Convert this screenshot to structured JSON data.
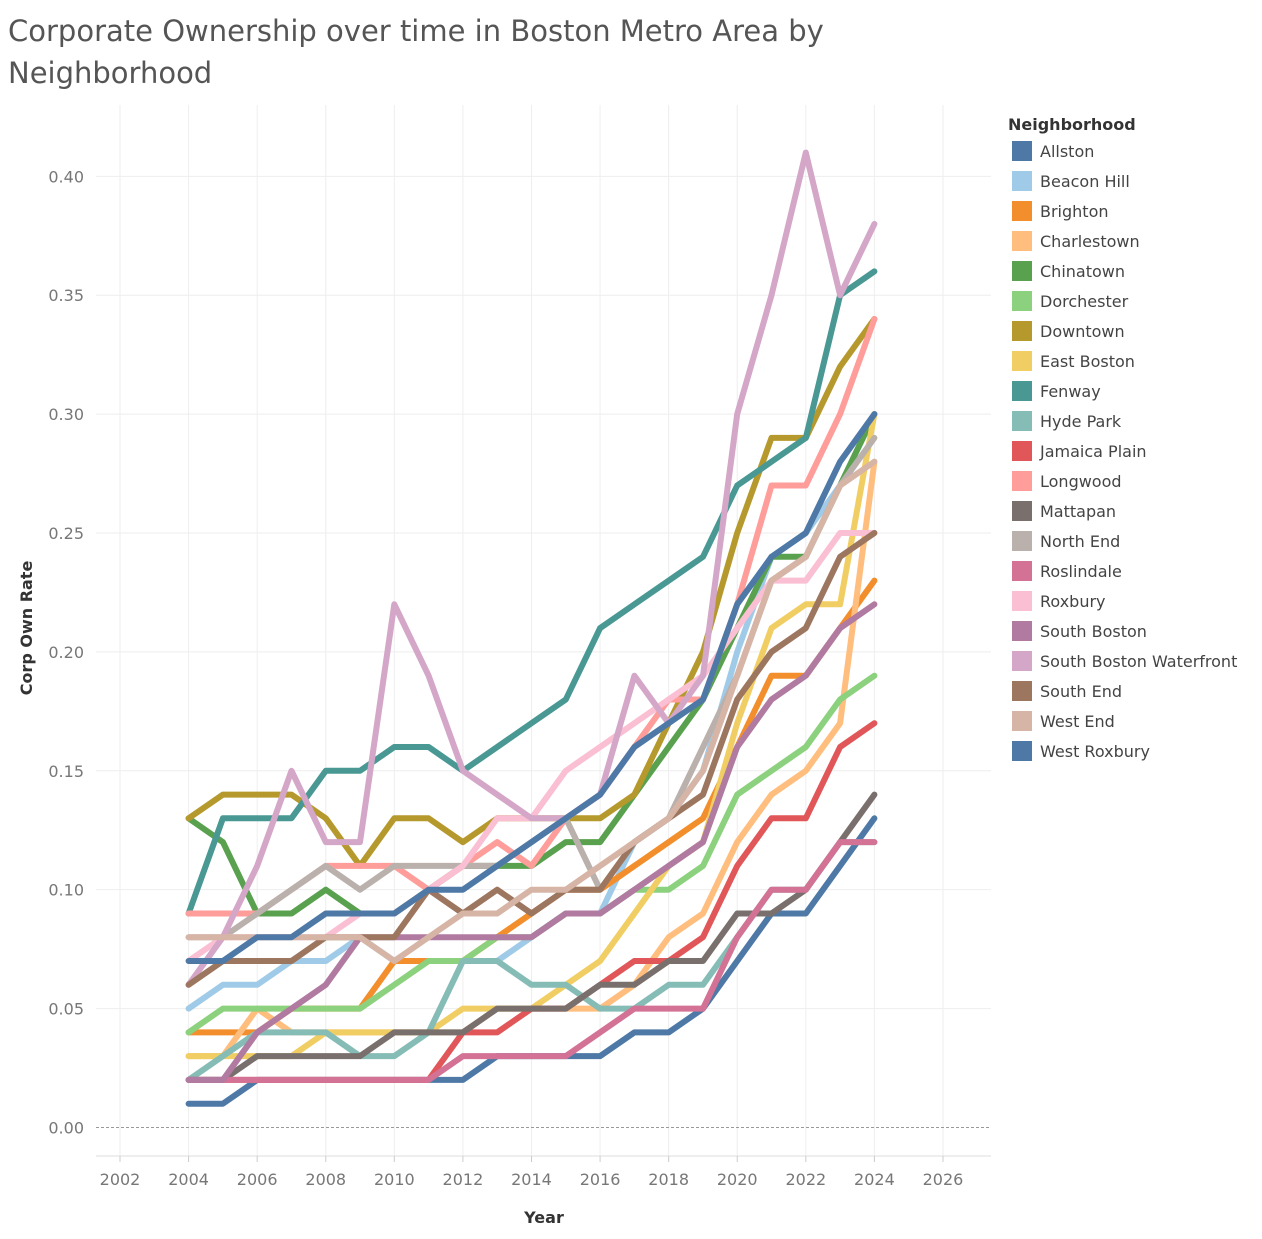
{
  "chart_data": {
    "type": "line",
    "title": "Corporate Ownership over time in Boston Metro Area by Neighborhood",
    "xlabel": "Year",
    "ylabel": "Corp Own Rate",
    "legend_title": "Neighborhood",
    "legend_position": "right",
    "xlim": [
      2001.3,
      2027.4
    ],
    "ylim": [
      -0.012,
      0.43
    ],
    "x_ticks": [
      2002,
      2004,
      2006,
      2008,
      2010,
      2012,
      2014,
      2016,
      2018,
      2020,
      2022,
      2024,
      2026
    ],
    "y_ticks": [
      0.0,
      0.05,
      0.1,
      0.15,
      0.2,
      0.25,
      0.3,
      0.35,
      0.4
    ],
    "y_tick_labels": [
      "0.00",
      "0.05",
      "0.10",
      "0.15",
      "0.20",
      "0.25",
      "0.30",
      "0.35",
      "0.40"
    ],
    "x": [
      2004,
      2005,
      2006,
      2007,
      2008,
      2009,
      2010,
      2011,
      2012,
      2013,
      2014,
      2015,
      2016,
      2017,
      2018,
      2019,
      2020,
      2021,
      2022,
      2023,
      2024
    ],
    "series": [
      {
        "name": "Allston",
        "color": "#4e79a7",
        "values": [
          0.01,
          0.01,
          0.02,
          0.02,
          0.02,
          0.02,
          0.02,
          0.02,
          0.02,
          0.03,
          0.03,
          0.03,
          0.03,
          0.04,
          0.04,
          0.05,
          0.07,
          0.09,
          0.09,
          0.11,
          0.13
        ]
      },
      {
        "name": "Beacon Hill",
        "color": "#a0cbe8",
        "values": [
          0.05,
          0.06,
          0.06,
          0.07,
          0.07,
          0.08,
          0.07,
          0.07,
          0.07,
          0.07,
          0.08,
          0.09,
          0.09,
          0.12,
          0.13,
          0.15,
          0.2,
          0.24,
          0.25,
          0.27,
          0.3
        ]
      },
      {
        "name": "Brighton",
        "color": "#f28e2b",
        "values": [
          0.04,
          0.04,
          0.04,
          0.05,
          0.05,
          0.05,
          0.07,
          0.07,
          0.07,
          0.08,
          0.09,
          0.1,
          0.1,
          0.11,
          0.12,
          0.13,
          0.16,
          0.19,
          0.19,
          0.21,
          0.23
        ]
      },
      {
        "name": "Charlestown",
        "color": "#ffbe7d",
        "values": [
          0.03,
          0.03,
          0.05,
          0.04,
          0.04,
          0.04,
          0.04,
          0.04,
          0.04,
          0.05,
          0.05,
          0.05,
          0.05,
          0.06,
          0.08,
          0.09,
          0.12,
          0.14,
          0.15,
          0.17,
          0.28
        ]
      },
      {
        "name": "Chinatown",
        "color": "#59a14f",
        "values": [
          0.13,
          0.12,
          0.09,
          0.09,
          0.1,
          0.09,
          0.09,
          0.1,
          0.11,
          0.11,
          0.11,
          0.12,
          0.12,
          0.14,
          0.16,
          0.18,
          0.21,
          0.24,
          0.24,
          0.27,
          0.3
        ]
      },
      {
        "name": "Dorchester",
        "color": "#8cd17d",
        "values": [
          0.04,
          0.05,
          0.05,
          0.05,
          0.05,
          0.05,
          0.06,
          0.07,
          0.07,
          0.08,
          0.08,
          0.09,
          0.09,
          0.1,
          0.1,
          0.11,
          0.14,
          0.15,
          0.16,
          0.18,
          0.19
        ]
      },
      {
        "name": "Downtown",
        "color": "#b6992d",
        "values": [
          0.13,
          0.14,
          0.14,
          0.14,
          0.13,
          0.11,
          0.13,
          0.13,
          0.12,
          0.13,
          0.13,
          0.13,
          0.13,
          0.14,
          0.17,
          0.2,
          0.25,
          0.29,
          0.29,
          0.32,
          0.34
        ]
      },
      {
        "name": "East Boston",
        "color": "#f1ce63",
        "values": [
          0.03,
          0.03,
          0.03,
          0.03,
          0.04,
          0.04,
          0.04,
          0.04,
          0.05,
          0.05,
          0.05,
          0.06,
          0.07,
          0.09,
          0.11,
          0.12,
          0.17,
          0.21,
          0.22,
          0.22,
          0.3
        ]
      },
      {
        "name": "Fenway",
        "color": "#499894",
        "values": [
          0.09,
          0.13,
          0.13,
          0.13,
          0.15,
          0.15,
          0.16,
          0.16,
          0.15,
          0.16,
          0.17,
          0.18,
          0.21,
          0.22,
          0.23,
          0.24,
          0.27,
          0.28,
          0.29,
          0.35,
          0.36
        ]
      },
      {
        "name": "Hyde Park",
        "color": "#86bcb6",
        "values": [
          0.02,
          0.03,
          0.04,
          0.04,
          0.04,
          0.03,
          0.03,
          0.04,
          0.07,
          0.07,
          0.06,
          0.06,
          0.05,
          0.05,
          0.06,
          0.06,
          0.08,
          0.1,
          0.1,
          0.12,
          0.12
        ]
      },
      {
        "name": "Jamaica Plain",
        "color": "#e15759",
        "values": [
          0.02,
          0.02,
          0.02,
          0.02,
          0.02,
          0.02,
          0.02,
          0.02,
          0.04,
          0.04,
          0.05,
          0.05,
          0.06,
          0.07,
          0.07,
          0.08,
          0.11,
          0.13,
          0.13,
          0.16,
          0.17
        ]
      },
      {
        "name": "Longwood",
        "color": "#ff9d9a",
        "values": [
          0.09,
          0.09,
          0.09,
          0.1,
          0.11,
          0.11,
          0.11,
          0.1,
          0.11,
          0.12,
          0.11,
          0.13,
          0.14,
          0.16,
          0.18,
          0.18,
          0.22,
          0.27,
          0.27,
          0.3,
          0.34
        ]
      },
      {
        "name": "Mattapan",
        "color": "#79706e",
        "values": [
          0.02,
          0.02,
          0.03,
          0.03,
          0.03,
          0.03,
          0.04,
          0.04,
          0.04,
          0.05,
          0.05,
          0.05,
          0.06,
          0.06,
          0.07,
          0.07,
          0.09,
          0.09,
          0.1,
          0.12,
          0.14
        ]
      },
      {
        "name": "North End",
        "color": "#bab0ac",
        "values": [
          0.08,
          0.08,
          0.09,
          0.1,
          0.11,
          0.1,
          0.11,
          0.11,
          0.11,
          0.11,
          0.12,
          0.13,
          0.1,
          0.12,
          0.13,
          0.16,
          0.19,
          0.23,
          0.24,
          0.27,
          0.29
        ]
      },
      {
        "name": "Roslindale",
        "color": "#d37295",
        "values": [
          0.02,
          0.02,
          0.02,
          0.02,
          0.02,
          0.02,
          0.02,
          0.02,
          0.03,
          0.03,
          0.03,
          0.03,
          0.04,
          0.05,
          0.05,
          0.05,
          0.08,
          0.1,
          0.1,
          0.12,
          0.12
        ]
      },
      {
        "name": "Roxbury",
        "color": "#fabfd2",
        "values": [
          0.07,
          0.08,
          0.08,
          0.08,
          0.08,
          0.09,
          0.09,
          0.1,
          0.11,
          0.13,
          0.13,
          0.15,
          0.16,
          0.17,
          0.18,
          0.19,
          0.21,
          0.23,
          0.23,
          0.25,
          0.25
        ]
      },
      {
        "name": "South Boston",
        "color": "#b07aa1",
        "values": [
          0.02,
          0.02,
          0.04,
          0.05,
          0.06,
          0.08,
          0.08,
          0.08,
          0.08,
          0.08,
          0.08,
          0.09,
          0.09,
          0.1,
          0.11,
          0.12,
          0.16,
          0.18,
          0.19,
          0.21,
          0.22
        ]
      },
      {
        "name": "South Boston Waterfront",
        "color": "#d4a6c8",
        "values": [
          0.06,
          0.08,
          0.11,
          0.15,
          0.12,
          0.12,
          0.22,
          0.19,
          0.15,
          0.14,
          0.13,
          0.13,
          0.14,
          0.19,
          0.17,
          0.19,
          0.3,
          0.35,
          0.41,
          0.35,
          0.38
        ]
      },
      {
        "name": "South End",
        "color": "#9d7660",
        "values": [
          0.06,
          0.07,
          0.07,
          0.07,
          0.08,
          0.08,
          0.08,
          0.1,
          0.09,
          0.1,
          0.09,
          0.1,
          0.1,
          0.12,
          0.13,
          0.14,
          0.18,
          0.2,
          0.21,
          0.24,
          0.25
        ]
      },
      {
        "name": "West End",
        "color": "#d7b5a6",
        "values": [
          0.08,
          0.08,
          0.08,
          0.08,
          0.08,
          0.08,
          0.07,
          0.08,
          0.09,
          0.09,
          0.1,
          0.1,
          0.11,
          0.12,
          0.13,
          0.15,
          0.19,
          0.23,
          0.24,
          0.27,
          0.28
        ]
      },
      {
        "name": "West Roxbury",
        "color": "#4e79a7",
        "values": [
          0.07,
          0.07,
          0.08,
          0.08,
          0.09,
          0.09,
          0.09,
          0.1,
          0.1,
          0.11,
          0.12,
          0.13,
          0.14,
          0.16,
          0.17,
          0.18,
          0.22,
          0.24,
          0.25,
          0.28,
          0.3
        ]
      }
    ]
  }
}
